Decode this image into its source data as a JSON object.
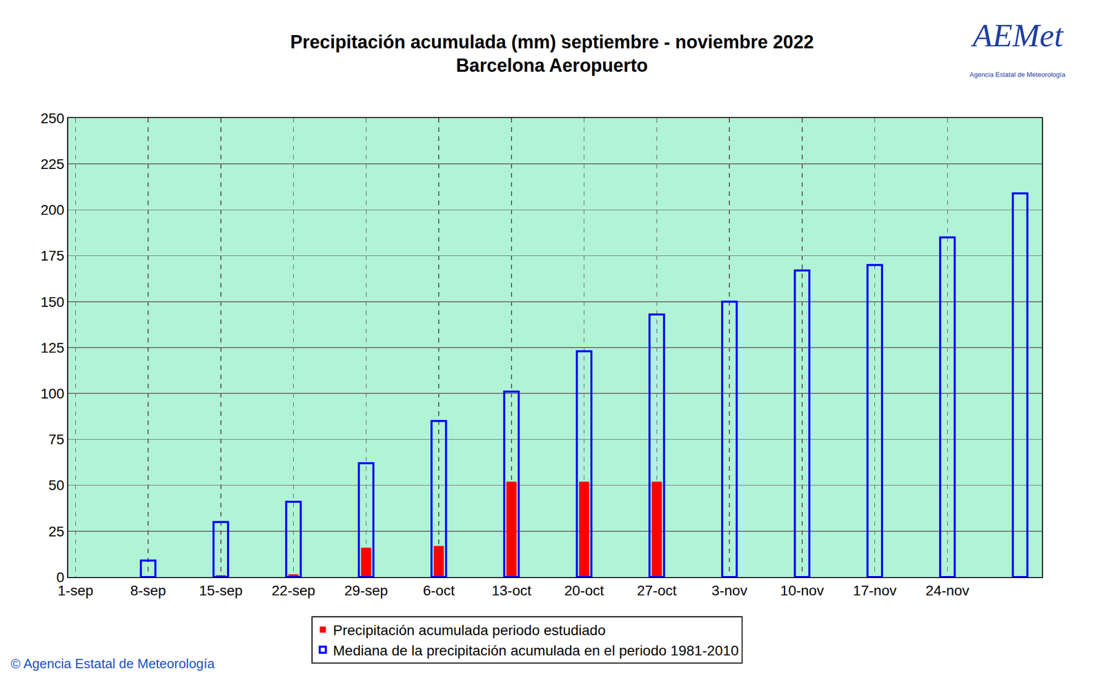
{
  "chart_data": {
    "type": "bar",
    "title": "Precipitación acumulada (mm) septiembre - noviembre 2022",
    "subtitle": "Barcelona Aeropuerto",
    "logo": "AEMet",
    "logo_caption": "Agencia Estatal de Meteorología",
    "source": "© Agencia Estatal de Meteorología",
    "categories": [
      "1-sep",
      "8-sep",
      "15-sep",
      "22-sep",
      "29-sep",
      "6-oct",
      "13-oct",
      "20-oct",
      "27-oct",
      "3-nov",
      "10-nov",
      "17-nov",
      "24-nov",
      null
    ],
    "series": [
      {
        "name": "Precipitación acumulada periodo estudiado",
        "color": "#ff0000",
        "values": [
          null,
          0,
          1,
          1.5,
          16,
          17,
          52,
          52,
          52,
          null,
          null,
          null,
          null,
          null
        ]
      },
      {
        "name": "Mediana de la precipitación acumulada en el periodo 1981-2010",
        "color": "#0000ff",
        "values": [
          null,
          9,
          30,
          41,
          62,
          85,
          101,
          123,
          143,
          150,
          167,
          170,
          185,
          209
        ]
      }
    ],
    "ylim": [
      0,
      250
    ],
    "yticks": [
      0,
      25,
      50,
      75,
      100,
      125,
      150,
      175,
      200,
      225,
      250
    ],
    "grid": true,
    "legend": "bottom"
  }
}
